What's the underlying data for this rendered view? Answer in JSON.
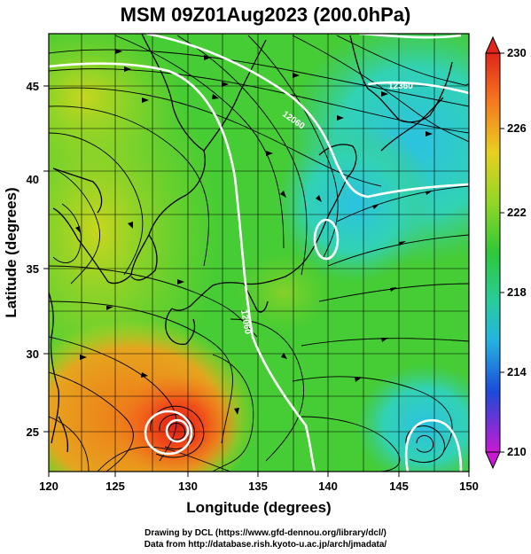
{
  "title": "MSM 09Z01Aug2023 (200.0hPa)",
  "credits": [
    "Drawing by DCL (https://www.gfd-dennou.org/library/dcl/)",
    "Data from http://database.rish.kyoto-u.ac.jp/arch/jmadata/"
  ],
  "map": {
    "xlabel": "Longitude (degrees)",
    "ylabel": "Latitude  (degrees)",
    "lon_range": [
      120,
      150
    ],
    "lat_range": [
      22.4,
      47.6
    ],
    "lon_ticks": [
      "120",
      "125",
      "130",
      "135",
      "140",
      "145",
      "150"
    ],
    "lat_ticks": [
      "25",
      "30",
      "35",
      "40",
      "45"
    ],
    "contour_labels": [
      "12360",
      "12060",
      "12060",
      "12360"
    ]
  },
  "colorbar": {
    "range": [
      210,
      230
    ],
    "labels": [
      "230",
      "226",
      "222",
      "218",
      "214",
      "210"
    ]
  },
  "colors": {
    "field_green": "#3ecc2a",
    "field_yellow": "#c8d61e",
    "field_cyan": "#35d2b8",
    "field_orange": "#f07818",
    "field_red": "#e23216"
  }
}
